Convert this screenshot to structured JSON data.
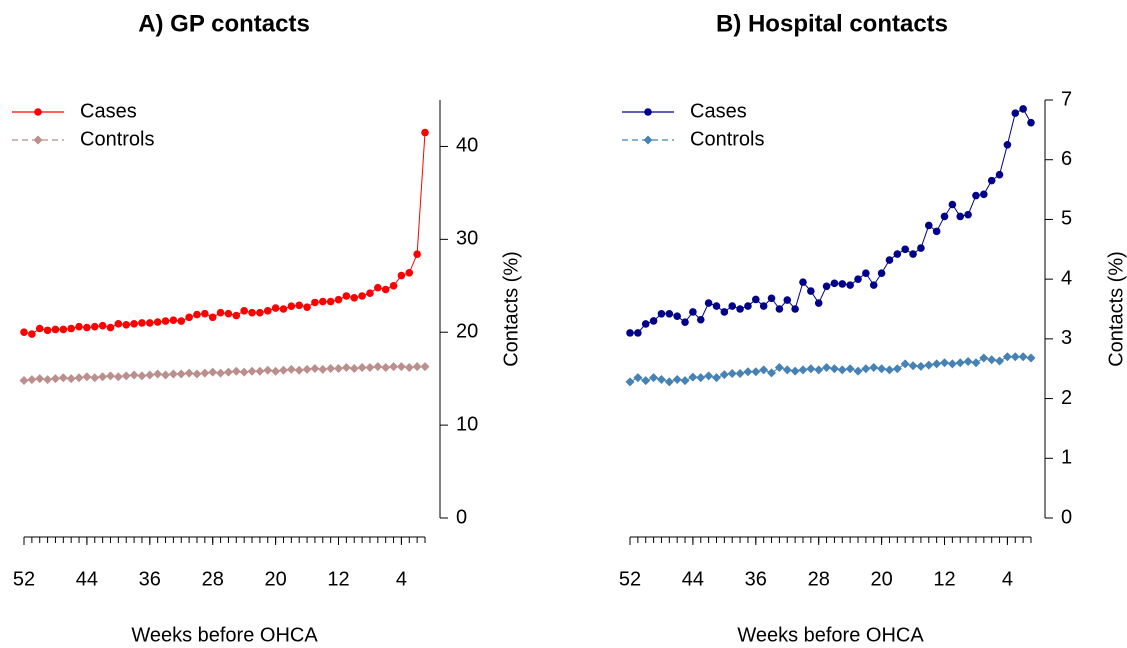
{
  "chart_data": [
    {
      "type": "line",
      "title": "A) GP contacts",
      "xlabel": "Weeks before OHCA",
      "ylabel": "Contacts (%)",
      "x": [
        52,
        51,
        50,
        49,
        48,
        47,
        46,
        45,
        44,
        43,
        42,
        41,
        40,
        39,
        38,
        37,
        36,
        35,
        34,
        33,
        32,
        31,
        30,
        29,
        28,
        27,
        26,
        25,
        24,
        23,
        22,
        21,
        20,
        19,
        18,
        17,
        16,
        15,
        14,
        13,
        12,
        11,
        10,
        9,
        8,
        7,
        6,
        5,
        4,
        3,
        2,
        1
      ],
      "xlim": [
        52,
        1
      ],
      "xticks": [
        52,
        44,
        36,
        28,
        20,
        12,
        4
      ],
      "ylim": [
        0,
        45
      ],
      "yticks": [
        0,
        10,
        20,
        30,
        40
      ],
      "y_axis_side": "right",
      "legend": "top-left",
      "series": [
        {
          "name": "Cases",
          "color": "#ff0000",
          "marker": "circle",
          "linestyle": "solid",
          "values": [
            20.0,
            19.8,
            20.4,
            20.2,
            20.3,
            20.3,
            20.4,
            20.6,
            20.5,
            20.6,
            20.7,
            20.5,
            20.9,
            20.8,
            20.9,
            21.0,
            21.0,
            21.1,
            21.2,
            21.3,
            21.2,
            21.6,
            21.9,
            22.0,
            21.6,
            22.1,
            22.0,
            21.8,
            22.3,
            22.1,
            22.1,
            22.3,
            22.6,
            22.5,
            22.8,
            22.9,
            22.7,
            23.2,
            23.3,
            23.3,
            23.5,
            23.9,
            23.7,
            23.9,
            24.2,
            24.8,
            24.6,
            25.0,
            26.1,
            26.4,
            28.4,
            41.5
          ]
        },
        {
          "name": "Controls",
          "color": "#bc8f8f",
          "marker": "diamond",
          "linestyle": "dashed",
          "values": [
            14.8,
            14.9,
            15.0,
            14.9,
            15.0,
            15.1,
            15.0,
            15.1,
            15.2,
            15.1,
            15.2,
            15.3,
            15.2,
            15.3,
            15.4,
            15.3,
            15.4,
            15.5,
            15.4,
            15.5,
            15.5,
            15.6,
            15.5,
            15.6,
            15.7,
            15.6,
            15.7,
            15.8,
            15.7,
            15.8,
            15.8,
            15.9,
            15.8,
            15.9,
            16.0,
            15.9,
            16.0,
            16.1,
            16.0,
            16.1,
            16.1,
            16.2,
            16.1,
            16.2,
            16.2,
            16.3,
            16.2,
            16.3,
            16.3,
            16.2,
            16.3,
            16.3
          ]
        }
      ]
    },
    {
      "type": "line",
      "title": "B) Hospital contacts",
      "xlabel": "Weeks before OHCA",
      "ylabel": "Contacts (%)",
      "x": [
        52,
        51,
        50,
        49,
        48,
        47,
        46,
        45,
        44,
        43,
        42,
        41,
        40,
        39,
        38,
        37,
        36,
        35,
        34,
        33,
        32,
        31,
        30,
        29,
        28,
        27,
        26,
        25,
        24,
        23,
        22,
        21,
        20,
        19,
        18,
        17,
        16,
        15,
        14,
        13,
        12,
        11,
        10,
        9,
        8,
        7,
        6,
        5,
        4,
        3,
        2,
        1
      ],
      "xlim": [
        52,
        1
      ],
      "xticks": [
        52,
        44,
        36,
        28,
        20,
        12,
        4
      ],
      "ylim": [
        0,
        7
      ],
      "yticks": [
        0,
        1,
        2,
        3,
        4,
        5,
        6,
        7
      ],
      "y_axis_side": "right",
      "legend": "top-left",
      "series": [
        {
          "name": "Cases",
          "color": "#00008b",
          "marker": "circle",
          "linestyle": "solid",
          "values": [
            3.1,
            3.1,
            3.25,
            3.3,
            3.42,
            3.42,
            3.38,
            3.28,
            3.45,
            3.32,
            3.6,
            3.55,
            3.45,
            3.55,
            3.5,
            3.55,
            3.66,
            3.55,
            3.68,
            3.5,
            3.65,
            3.5,
            3.95,
            3.8,
            3.6,
            3.88,
            3.93,
            3.92,
            3.9,
            4.0,
            4.1,
            3.9,
            4.1,
            4.32,
            4.42,
            4.5,
            4.42,
            4.52,
            4.9,
            4.8,
            5.05,
            5.25,
            5.05,
            5.08,
            5.4,
            5.42,
            5.65,
            5.75,
            6.25,
            6.78,
            6.85,
            6.62
          ]
        },
        {
          "name": "Controls",
          "color": "#4682b4",
          "marker": "diamond",
          "linestyle": "dashed",
          "values": [
            2.28,
            2.35,
            2.3,
            2.35,
            2.32,
            2.28,
            2.32,
            2.3,
            2.36,
            2.35,
            2.38,
            2.35,
            2.4,
            2.42,
            2.42,
            2.45,
            2.45,
            2.48,
            2.43,
            2.52,
            2.48,
            2.46,
            2.48,
            2.5,
            2.48,
            2.52,
            2.5,
            2.48,
            2.5,
            2.46,
            2.5,
            2.52,
            2.5,
            2.48,
            2.5,
            2.58,
            2.55,
            2.54,
            2.56,
            2.58,
            2.6,
            2.58,
            2.6,
            2.62,
            2.6,
            2.68,
            2.65,
            2.63,
            2.7,
            2.7,
            2.7,
            2.68
          ]
        }
      ]
    }
  ]
}
